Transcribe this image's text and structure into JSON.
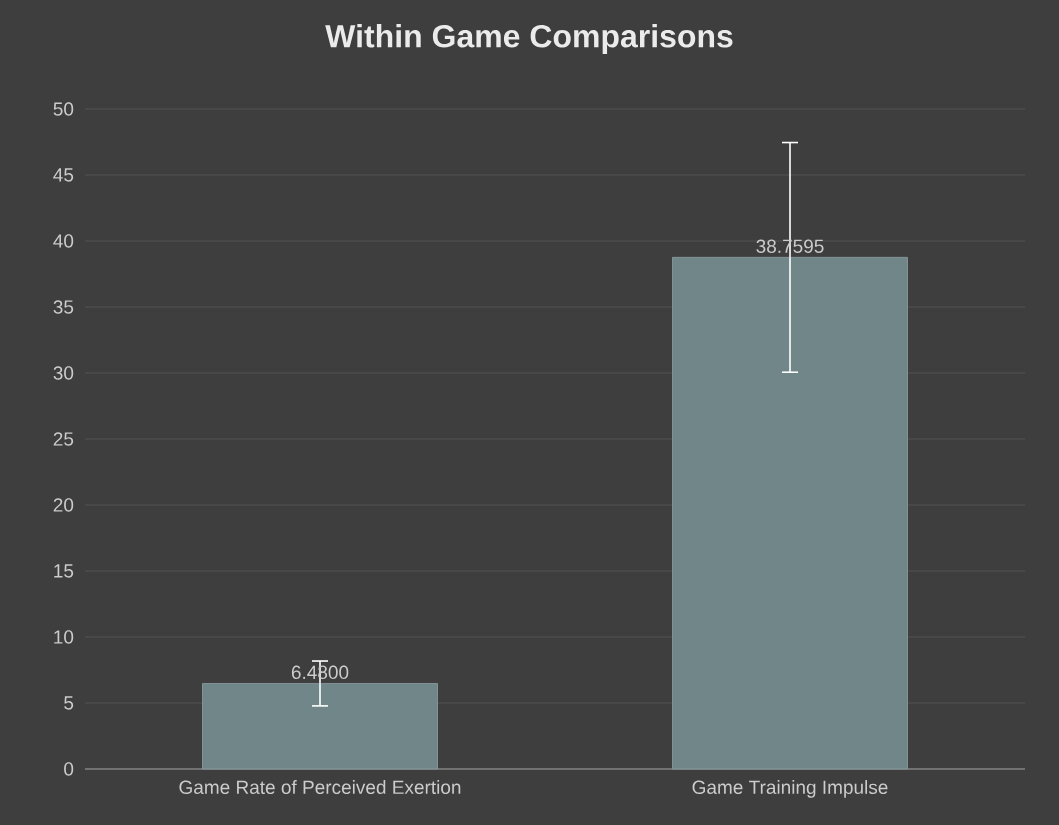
{
  "chart_data": {
    "type": "bar",
    "title": "Within Game Comparisons",
    "categories": [
      "Game Rate of Perceived Exertion",
      "Game Training Impulse"
    ],
    "values": [
      6.48,
      38.7595
    ],
    "value_labels": [
      "6.4800",
      "38.7595"
    ],
    "errors": [
      1.7,
      8.7
    ],
    "color": "#718689",
    "ylim": [
      0,
      50
    ],
    "yticks": [
      0,
      5,
      10,
      15,
      20,
      25,
      30,
      35,
      40,
      45,
      50
    ],
    "grid": "y"
  }
}
